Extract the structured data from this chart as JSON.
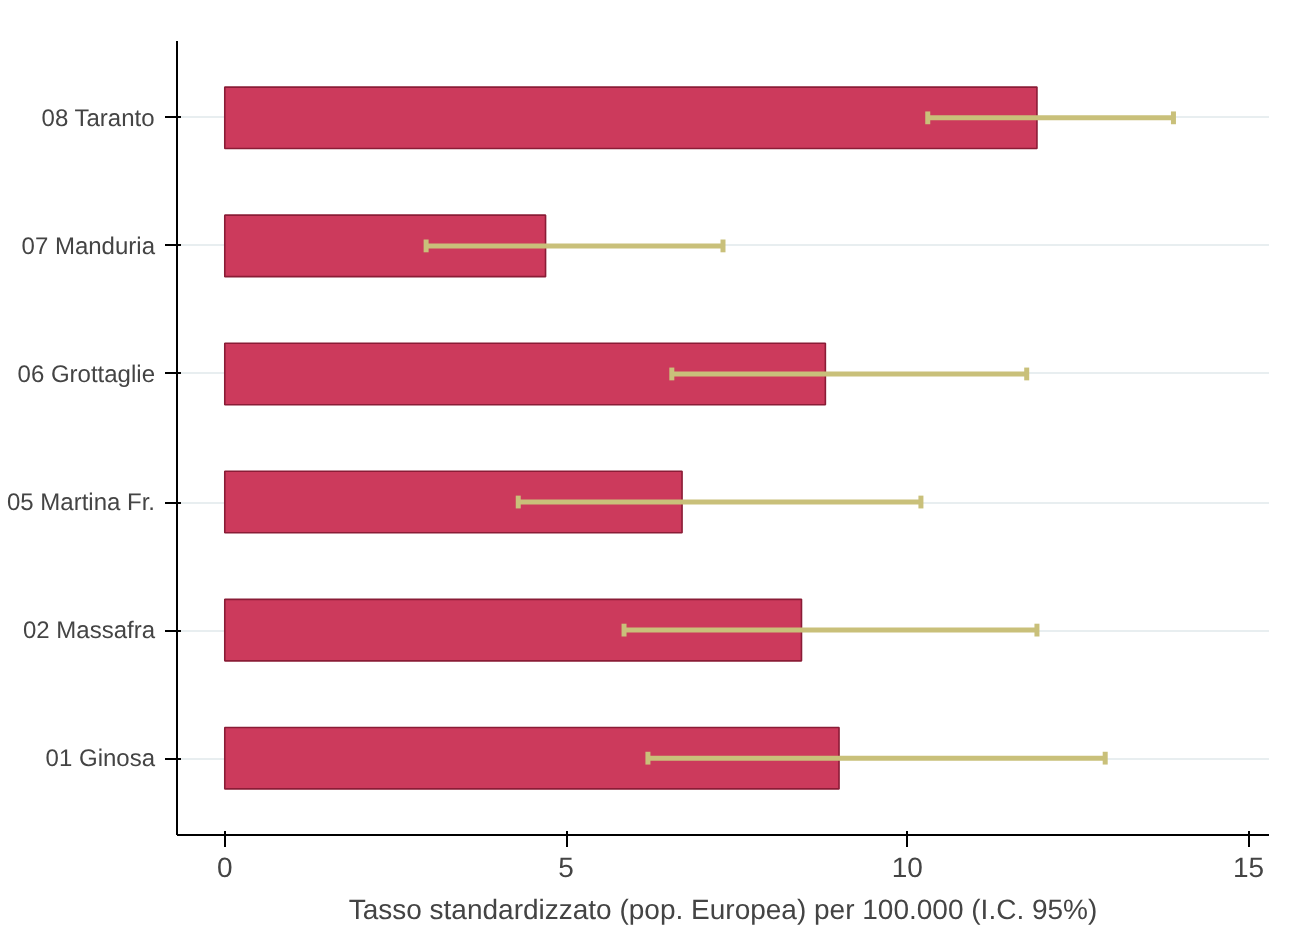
{
  "chart_data": {
    "type": "bar",
    "orientation": "horizontal",
    "xlabel": "Tasso standardizzato (pop. Europea) per 100.000 (I.C. 95%)",
    "categories": [
      "08 Taranto",
      "07 Manduria",
      "06 Grottaglie",
      "05 Martina Fr.",
      "02 Massafra",
      "01 Ginosa"
    ],
    "values": [
      11.9,
      4.7,
      8.8,
      6.7,
      8.45,
      9.0
    ],
    "errors": [
      [
        10.3,
        13.9
      ],
      [
        2.95,
        7.3
      ],
      [
        6.55,
        11.75
      ],
      [
        4.3,
        10.2
      ],
      [
        5.85,
        11.9
      ],
      [
        6.2,
        12.9
      ]
    ],
    "color": "#cc3a5c",
    "xlim": [
      -0.7,
      15.3
    ],
    "xticks": [
      0,
      5,
      10,
      15
    ],
    "grid": "y"
  }
}
